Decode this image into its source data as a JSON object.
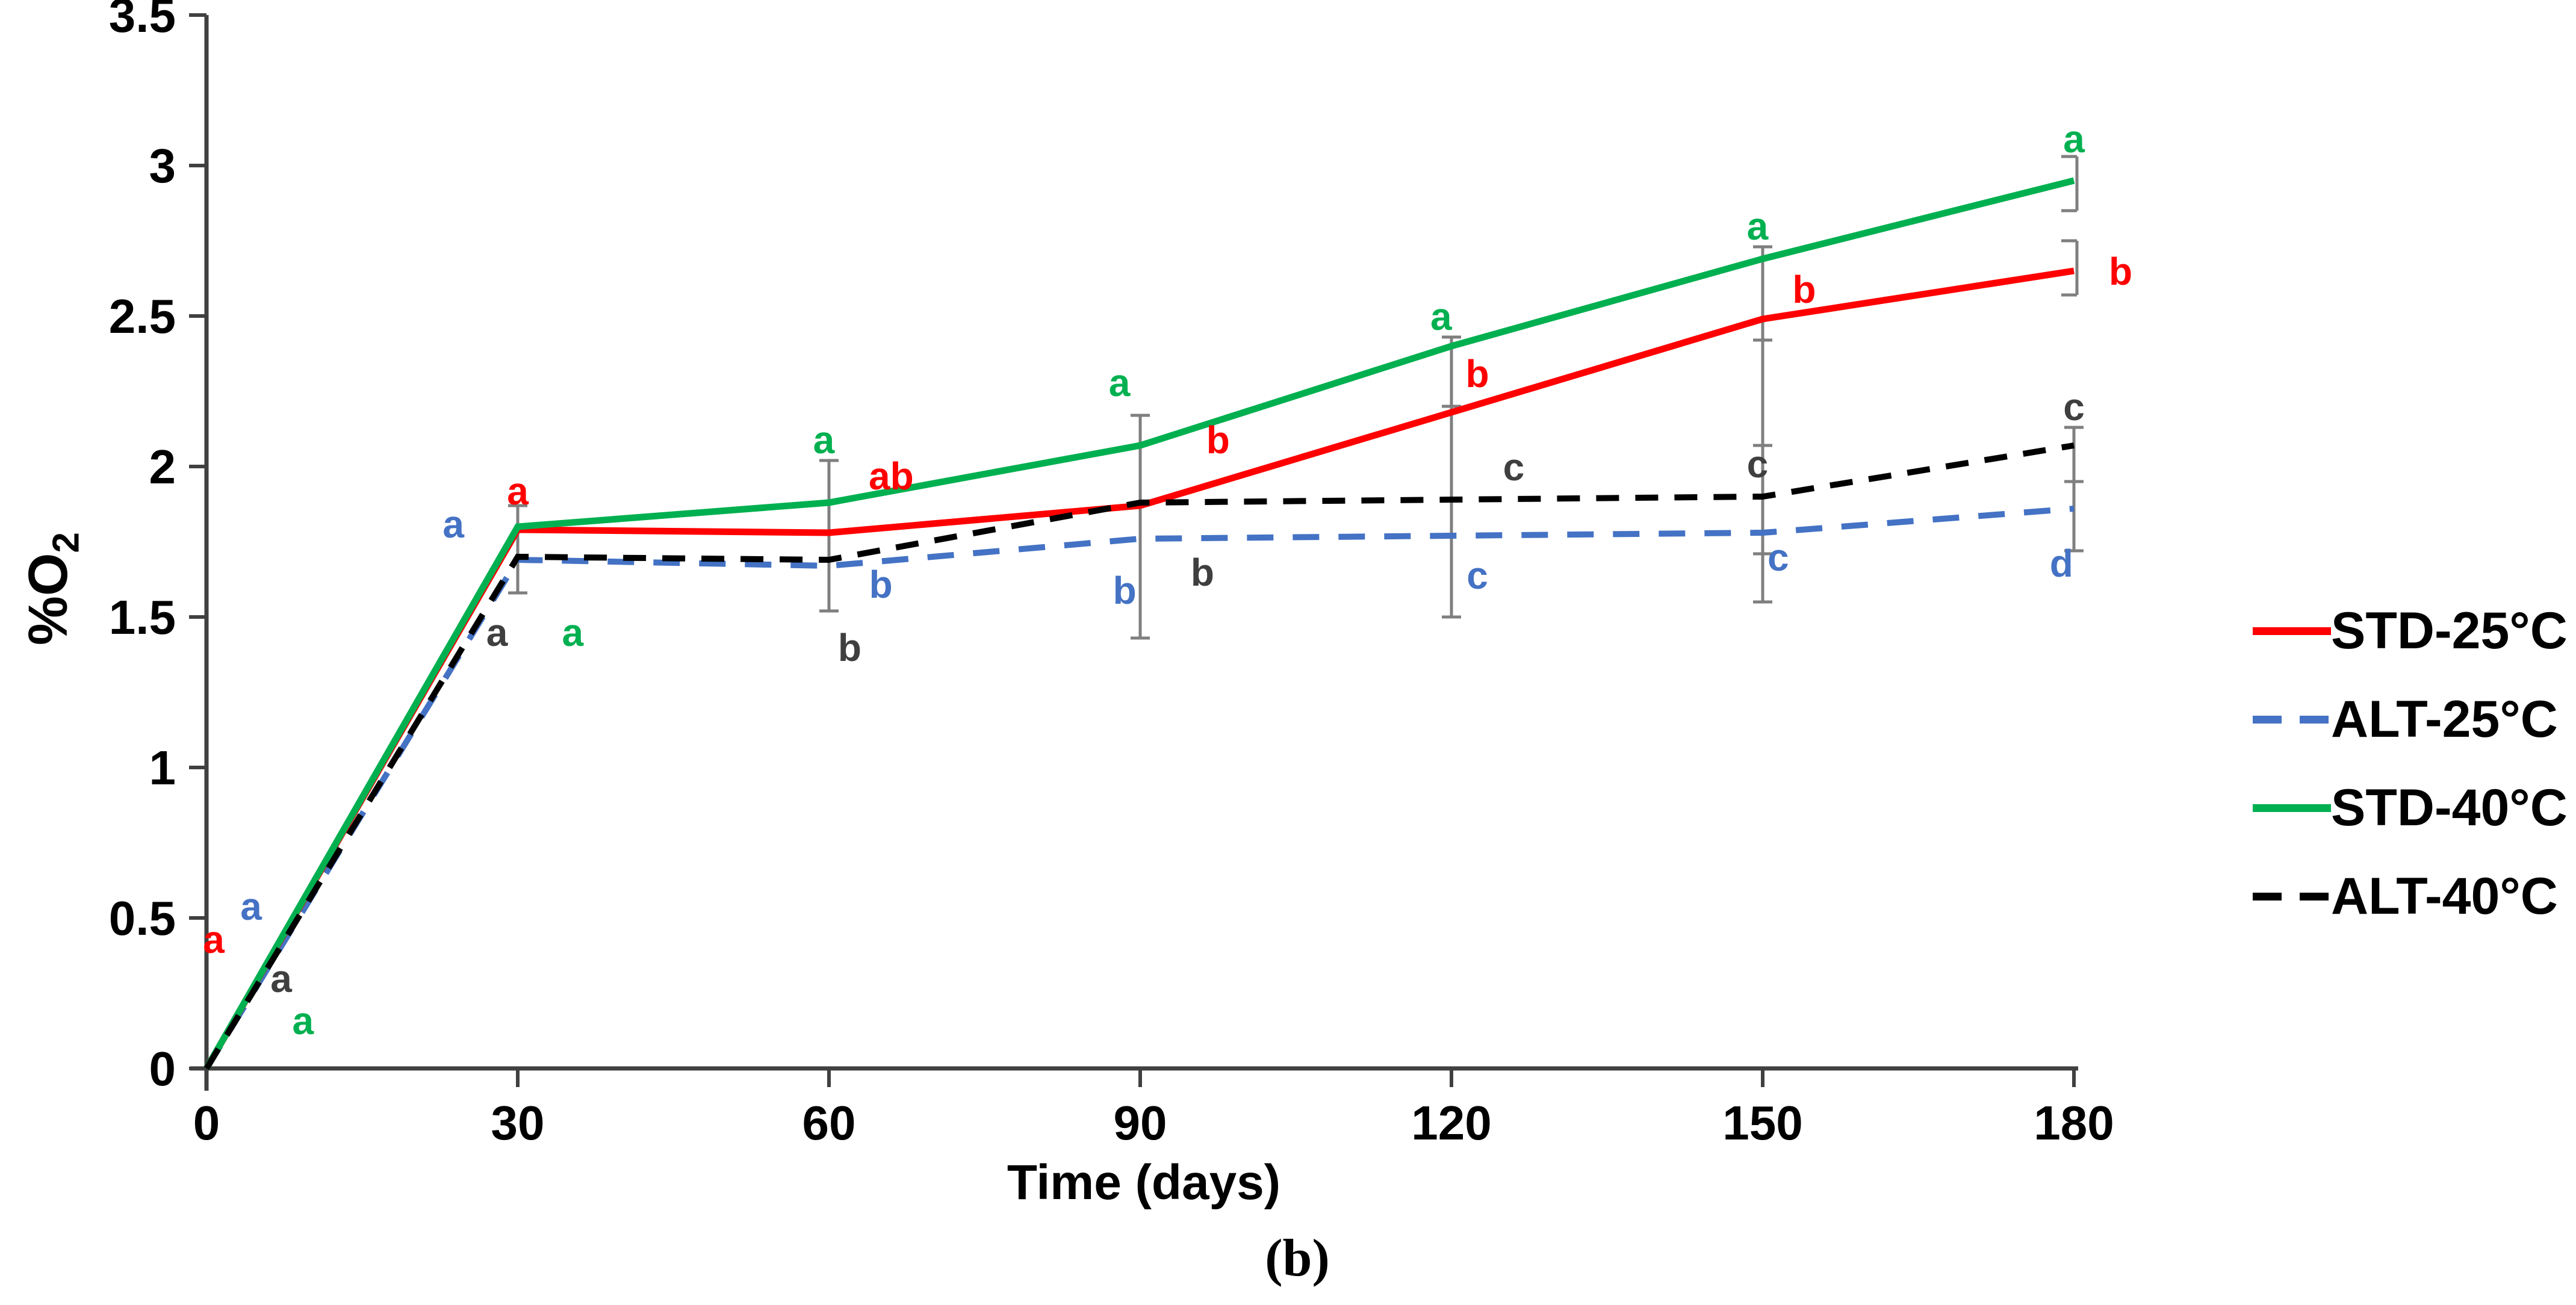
{
  "figure": {
    "caption": "(b)"
  },
  "chart_data": {
    "type": "line",
    "title": "",
    "xlabel": "Time (days)",
    "ylabel": "%O2",
    "ylabel_base": "%O",
    "ylabel_sub": "2",
    "x": [
      0,
      30,
      60,
      90,
      120,
      150,
      180
    ],
    "xticks": [
      "0",
      "30",
      "60",
      "90",
      "120",
      "150",
      "180"
    ],
    "yticks": [
      "0",
      "0.5",
      "1",
      "1.5",
      "2",
      "2.5",
      "3",
      "3.5"
    ],
    "xlim": [
      0,
      180
    ],
    "ylim": [
      0,
      3.5
    ],
    "grid": false,
    "legend_position": "right-middle",
    "series": [
      {
        "name": "STD-25°C",
        "color": "#FF0000",
        "style": "solid",
        "values": [
          0,
          1.79,
          1.78,
          1.87,
          2.18,
          2.49,
          2.65
        ]
      },
      {
        "name": "ALT-25°C",
        "color": "#4472C4",
        "style": "dashed",
        "values": [
          0,
          1.69,
          1.67,
          1.76,
          1.77,
          1.78,
          1.86
        ]
      },
      {
        "name": "STD-40°C",
        "color": "#00B050",
        "style": "solid",
        "values": [
          0,
          1.8,
          1.88,
          2.07,
          2.4,
          2.69,
          2.95
        ]
      },
      {
        "name": "ALT-40°C",
        "color": "#000000",
        "style": "dashed",
        "values": [
          0,
          1.7,
          1.69,
          1.88,
          1.89,
          1.9,
          2.07
        ]
      }
    ],
    "sig_letters": [
      {
        "day": 0.7,
        "value": 0.43,
        "label": "a",
        "color": "#FF0000"
      },
      {
        "day": 4.3,
        "value": 0.54,
        "label": "a",
        "color": "#4472C4"
      },
      {
        "day": 7.2,
        "value": 0.3,
        "label": "a",
        "color": "#3F3F3F"
      },
      {
        "day": 9.3,
        "value": 0.16,
        "label": "a",
        "color": "#00B050"
      },
      {
        "day": 30,
        "value": 1.92,
        "label": "a",
        "color": "#FF0000"
      },
      {
        "day": 23.8,
        "value": 1.81,
        "label": "a",
        "color": "#4472C4"
      },
      {
        "day": 28,
        "value": 1.45,
        "label": "a",
        "color": "#3F3F3F"
      },
      {
        "day": 35.3,
        "value": 1.45,
        "label": "a",
        "color": "#00B050"
      },
      {
        "day": 59.5,
        "value": 2.09,
        "label": "a",
        "color": "#00B050"
      },
      {
        "day": 66,
        "value": 1.97,
        "label": "ab",
        "color": "#FF0000"
      },
      {
        "day": 65,
        "value": 1.61,
        "label": "b",
        "color": "#4472C4"
      },
      {
        "day": 62,
        "value": 1.4,
        "label": "b",
        "color": "#3F3F3F"
      },
      {
        "day": 88,
        "value": 2.28,
        "label": "a",
        "color": "#00B050"
      },
      {
        "day": 97.5,
        "value": 2.09,
        "label": "b",
        "color": "#FF0000"
      },
      {
        "day": 88.5,
        "value": 1.59,
        "label": "b",
        "color": "#4472C4"
      },
      {
        "day": 96,
        "value": 1.65,
        "label": "b",
        "color": "#3F3F3F"
      },
      {
        "day": 119,
        "value": 2.5,
        "label": "a",
        "color": "#00B050"
      },
      {
        "day": 122.5,
        "value": 2.31,
        "label": "b",
        "color": "#FF0000"
      },
      {
        "day": 126,
        "value": 2.0,
        "label": "c",
        "color": "#3F3F3F"
      },
      {
        "day": 122.5,
        "value": 1.64,
        "label": "c",
        "color": "#4472C4"
      },
      {
        "day": 149.5,
        "value": 2.8,
        "label": "a",
        "color": "#00B050"
      },
      {
        "day": 154,
        "value": 2.59,
        "label": "b",
        "color": "#FF0000"
      },
      {
        "day": 149.5,
        "value": 2.01,
        "label": "c",
        "color": "#3F3F3F"
      },
      {
        "day": 151.5,
        "value": 1.7,
        "label": "c",
        "color": "#4472C4"
      },
      {
        "day": 180,
        "value": 3.09,
        "label": "a",
        "color": "#00B050"
      },
      {
        "day": 184.5,
        "value": 2.65,
        "label": "b",
        "color": "#FF0000"
      },
      {
        "day": 180,
        "value": 2.2,
        "label": "c",
        "color": "#3F3F3F"
      },
      {
        "day": 178.8,
        "value": 1.68,
        "label": "d",
        "color": "#4472C4"
      }
    ],
    "error_bars": [
      {
        "day": 30,
        "from": 1.58,
        "to": 1.87,
        "caps": [
          1.58,
          1.87
        ],
        "bracket": false
      },
      {
        "day": 60,
        "from": 1.52,
        "to": 2.02,
        "caps": [
          1.52,
          2.02
        ],
        "bracket": false
      },
      {
        "day": 90,
        "from": 1.43,
        "to": 2.17,
        "caps": [
          1.43,
          1.88,
          2.17
        ],
        "bracket": false
      },
      {
        "day": 120,
        "from": 1.5,
        "to": 2.43,
        "caps": [
          1.5,
          1.89,
          2.2,
          2.43
        ],
        "bracket": false
      },
      {
        "day": 150,
        "from": 1.55,
        "to": 2.73,
        "caps": [
          1.55,
          1.71,
          2.07,
          2.42,
          2.73
        ],
        "bracket": false
      },
      {
        "day": 180,
        "from": 1.72,
        "to": 2.13,
        "caps": [
          1.72,
          1.95,
          2.13
        ],
        "bracket": false
      },
      {
        "day": 180,
        "from": 2.57,
        "to": 2.75,
        "caps": [
          2.57,
          2.75
        ],
        "bracket": true
      },
      {
        "day": 180,
        "from": 2.85,
        "to": 3.03,
        "caps": [
          2.85,
          3.03
        ],
        "bracket": true
      }
    ],
    "colors": {
      "error_bar": "#7F7F7F",
      "axis": "#404040",
      "tick_label": "#000000"
    }
  }
}
